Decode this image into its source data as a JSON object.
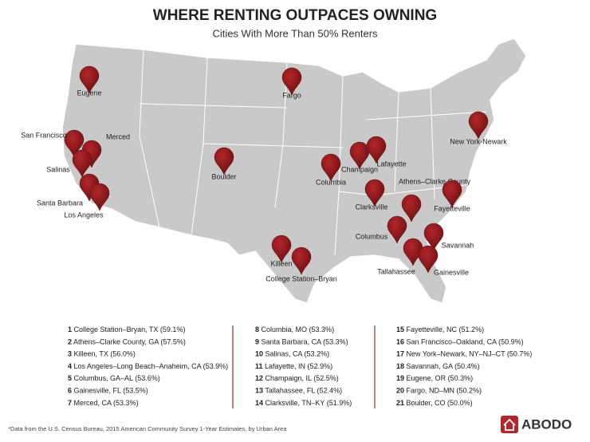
{
  "header": {
    "title": "WHERE RENTING OUTPACES OWNING",
    "subtitle": "Cities With More Than 50% Renters"
  },
  "map": {
    "pins": [
      "Eugene",
      "Fargo",
      "San Francisco",
      "Merced",
      "Salinas",
      "Boulder",
      "Columbia",
      "Champaign",
      "Lafayette",
      "New York-Newark",
      "Santa Barbara",
      "Los Angeles",
      "Clarksville",
      "Athens–Clarke County",
      "Fayetteville",
      "Columbus",
      "Savannah",
      "Tallahassee",
      "Gainesville",
      "Killeen",
      "College Station–Bryan"
    ]
  },
  "list": [
    {
      "rank": 1,
      "name": "College Station–Bryan, TX (59.1%)"
    },
    {
      "rank": 2,
      "name": "Athens–Clarke County, GA (57.5%)"
    },
    {
      "rank": 3,
      "name": "Killeen, TX (56.0%)"
    },
    {
      "rank": 4,
      "name": "Los Angeles–Long Beach–Anaheim, CA (53.9%)"
    },
    {
      "rank": 5,
      "name": "Columbus, GA–AL (53.6%)"
    },
    {
      "rank": 6,
      "name": "Gainesville, FL (53.5%)"
    },
    {
      "rank": 7,
      "name": "Merced, CA (53.3%)"
    },
    {
      "rank": 8,
      "name": "Columbia, MO (53.3%)"
    },
    {
      "rank": 9,
      "name": "Santa Barbara, CA (53.3%)"
    },
    {
      "rank": 10,
      "name": "Salinas, CA (53.2%)"
    },
    {
      "rank": 11,
      "name": "Lafayette, IN (52.9%)"
    },
    {
      "rank": 12,
      "name": "Champaign, IL (52.5%)"
    },
    {
      "rank": 13,
      "name": "Tallahassee, FL (52.4%)"
    },
    {
      "rank": 14,
      "name": "Clarksville, TN–KY (51.9%)"
    },
    {
      "rank": 15,
      "name": "Fayetteville, NC (51.2%)"
    },
    {
      "rank": 16,
      "name": "San Francisco–Oakland, CA (50.9%)"
    },
    {
      "rank": 17,
      "name": "New York–Newark, NY–NJ–CT (50.7%)"
    },
    {
      "rank": 18,
      "name": "Savannah, GA (50.4%)"
    },
    {
      "rank": 19,
      "name": "Eugene, OR (50.3%)"
    },
    {
      "rank": 20,
      "name": "Fargo, ND–MN (50.2%)"
    },
    {
      "rank": 21,
      "name": "Boulder, CO (50.0%)"
    }
  ],
  "footnote": "*Data from the U.S. Census Bureau, 2015 American Community Survey 1-Year Estimates, by Urban Area",
  "logo": "ABODO"
}
